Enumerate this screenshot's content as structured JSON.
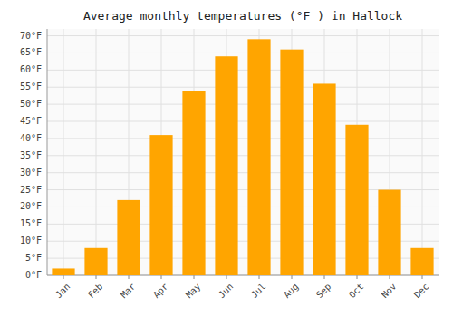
{
  "chart_data": {
    "type": "bar",
    "title": "Average monthly temperatures (°F ) in Hallock",
    "categories": [
      "Jan",
      "Feb",
      "Mar",
      "Apr",
      "May",
      "Jun",
      "Jul",
      "Aug",
      "Sep",
      "Oct",
      "Nov",
      "Dec"
    ],
    "values": [
      2,
      8,
      22,
      41,
      54,
      64,
      69,
      66,
      56,
      44,
      25,
      8
    ],
    "color": "#FFA500",
    "ylim": [
      0,
      72
    ],
    "yticks": [
      {
        "value": 0,
        "label": "0°F"
      },
      {
        "value": 5,
        "label": "5°F"
      },
      {
        "value": 10,
        "label": "10°F"
      },
      {
        "value": 15,
        "label": "15°F"
      },
      {
        "value": 20,
        "label": "20°F"
      },
      {
        "value": 25,
        "label": "25°F"
      },
      {
        "value": 30,
        "label": "30°F"
      },
      {
        "value": 35,
        "label": "35°F"
      },
      {
        "value": 40,
        "label": "40°F"
      },
      {
        "value": 45,
        "label": "45°F"
      },
      {
        "value": 50,
        "label": "50°F"
      },
      {
        "value": 55,
        "label": "55°F"
      },
      {
        "value": 60,
        "label": "60°F"
      },
      {
        "value": 65,
        "label": "65°F"
      },
      {
        "value": 70,
        "label": "70°F"
      }
    ],
    "grid": true
  }
}
